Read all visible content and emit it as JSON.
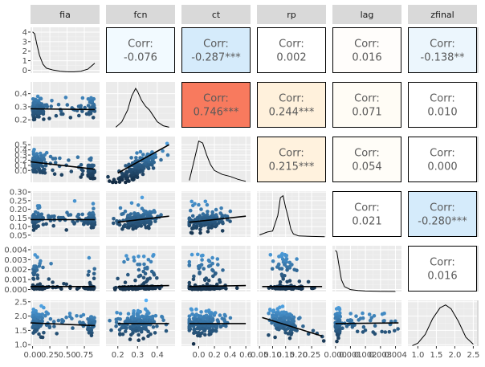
{
  "chart_data": {
    "type": "scatter",
    "variables": [
      "fia",
      "fcn",
      "ct",
      "rp",
      "lag",
      "zfinal"
    ],
    "correlations": [
      {
        "row": "fia",
        "col": "fcn",
        "label": "Corr:",
        "value": "-0.076",
        "fill": "#f2faff"
      },
      {
        "row": "fia",
        "col": "ct",
        "label": "Corr:",
        "value": "-0.287***",
        "fill": "#d5ebfb"
      },
      {
        "row": "fia",
        "col": "rp",
        "label": "Corr:",
        "value": "0.002",
        "fill": "#ffffff"
      },
      {
        "row": "fia",
        "col": "lag",
        "label": "Corr:",
        "value": "0.016",
        "fill": "#fffdfb"
      },
      {
        "row": "fia",
        "col": "zfinal",
        "label": "Corr:",
        "value": "-0.138**",
        "fill": "#ecf6fd"
      },
      {
        "row": "fcn",
        "col": "ct",
        "label": "Corr:",
        "value": "0.746***",
        "fill": "#f87a5e"
      },
      {
        "row": "fcn",
        "col": "rp",
        "label": "Corr:",
        "value": "0.244***",
        "fill": "#fff1dc"
      },
      {
        "row": "fcn",
        "col": "lag",
        "label": "Corr:",
        "value": "0.071",
        "fill": "#fffcf5"
      },
      {
        "row": "fcn",
        "col": "zfinal",
        "label": "Corr:",
        "value": "0.010",
        "fill": "#ffffff"
      },
      {
        "row": "ct",
        "col": "rp",
        "label": "Corr:",
        "value": "0.215***",
        "fill": "#fff2de"
      },
      {
        "row": "ct",
        "col": "lag",
        "label": "Corr:",
        "value": "0.054",
        "fill": "#fffdf8"
      },
      {
        "row": "ct",
        "col": "zfinal",
        "label": "Corr:",
        "value": "0.000",
        "fill": "#ffffff"
      },
      {
        "row": "rp",
        "col": "lag",
        "label": "Corr:",
        "value": "0.021",
        "fill": "#ffffff"
      },
      {
        "row": "rp",
        "col": "zfinal",
        "label": "Corr:",
        "value": "-0.280***",
        "fill": "#d5ebfb"
      },
      {
        "row": "lag",
        "col": "zfinal",
        "label": "Corr:",
        "value": "0.016",
        "fill": "#ffffff"
      }
    ],
    "x_axes": [
      {
        "var": "fia",
        "min": -0.03,
        "max": 0.97,
        "ticks": [
          0,
          0.25,
          0.5,
          0.75
        ],
        "labels": [
          "0.00",
          "0.25",
          "0.50",
          "0.75"
        ]
      },
      {
        "var": "fcn",
        "min": 0.14,
        "max": 0.49,
        "ticks": [
          0.2,
          0.3,
          0.4
        ],
        "labels": [
          "0.2",
          "0.3",
          "0.4"
        ]
      },
      {
        "var": "ct",
        "min": -0.22,
        "max": 0.66,
        "ticks": [
          0,
          0.2,
          0.4,
          0.6
        ],
        "labels": [
          "0.0",
          "0.2",
          "0.4",
          "0.6"
        ]
      },
      {
        "var": "rp",
        "min": 0.04,
        "max": 0.305,
        "ticks": [
          0.05,
          0.1,
          0.15,
          0.2,
          0.25
        ],
        "labels": [
          "0.05",
          "0.10",
          "0.15",
          "0.20",
          "0.25"
        ]
      },
      {
        "var": "lag",
        "min": -0.0002,
        "max": 0.0044,
        "ticks": [
          0,
          0.001,
          0.002,
          0.003,
          0.004
        ],
        "labels": [
          "0.000",
          "0.001",
          "0.002",
          "0.003",
          "0.004"
        ]
      },
      {
        "var": "zfinal",
        "min": 0.73,
        "max": 2.6,
        "ticks": [
          1.0,
          1.5,
          2.0,
          2.5
        ],
        "labels": [
          "1.0",
          "1.5",
          "2.0",
          "2.5"
        ]
      }
    ],
    "y_axes": [
      {
        "var": "fia",
        "min": -0.3,
        "max": 4.5,
        "ticks": [
          0,
          1,
          2,
          3,
          4
        ],
        "labels": [
          "0",
          "1",
          "2",
          "3",
          "4"
        ]
      },
      {
        "var": "fcn",
        "min": 0.14,
        "max": 0.49,
        "ticks": [
          0.2,
          0.3,
          0.4
        ],
        "labels": [
          "0.2",
          "0.3",
          "0.4"
        ]
      },
      {
        "var": "ct",
        "min": -0.23,
        "max": 0.66,
        "ticks": [
          0,
          0.1,
          0.2,
          0.3,
          0.4,
          0.5
        ],
        "labels": [
          "0.0",
          "0.1",
          "0.2",
          "0.3",
          "0.4",
          "0.5"
        ]
      },
      {
        "var": "rp",
        "min": 0.04,
        "max": 0.305,
        "ticks": [
          0.05,
          0.1,
          0.15,
          0.2,
          0.25,
          0.3
        ],
        "labels": [
          "0.05",
          "0.10",
          "0.15",
          "0.20",
          "0.25",
          "0.30"
        ]
      },
      {
        "var": "lag",
        "min": -0.0002,
        "max": 0.0044,
        "ticks": [
          0,
          0.001,
          0.002,
          0.003,
          0.004
        ],
        "labels": [
          "0.000",
          "0.001",
          "0.002",
          "0.003",
          "0.004"
        ]
      },
      {
        "var": "zfinal",
        "min": 0.95,
        "max": 2.55,
        "ticks": [
          1.0,
          1.5,
          2.0,
          2.5
        ],
        "labels": [
          "1.0",
          "1.5",
          "2.0",
          "2.5"
        ]
      }
    ],
    "densities": {
      "fia": {
        "x": [
          0,
          0.03,
          0.06,
          0.1,
          0.15,
          0.2,
          0.3,
          0.4,
          0.5,
          0.6,
          0.7,
          0.8,
          0.85,
          0.9
        ],
        "y": [
          4.2,
          4.0,
          3.0,
          1.8,
          0.9,
          0.5,
          0.3,
          0.2,
          0.15,
          0.15,
          0.2,
          0.4,
          0.7,
          1.0
        ]
      },
      "fcn": {
        "x": [
          0.19,
          0.22,
          0.25,
          0.27,
          0.29,
          0.3,
          0.32,
          0.34,
          0.36,
          0.38,
          0.4,
          0.43,
          0.46
        ],
        "y": [
          0.05,
          0.6,
          1.8,
          3.2,
          4.0,
          3.7,
          2.8,
          2.2,
          1.8,
          1.2,
          0.6,
          0.2,
          0.05
        ]
      },
      "ct": {
        "x": [
          -0.12,
          -0.05,
          0,
          0.05,
          0.1,
          0.15,
          0.2,
          0.3,
          0.4,
          0.5,
          0.6
        ],
        "y": [
          0.2,
          2.5,
          4.2,
          4.0,
          2.8,
          1.8,
          1.2,
          0.8,
          0.6,
          0.3,
          0.1
        ]
      },
      "rp": {
        "x": [
          0.05,
          0.08,
          0.1,
          0.12,
          0.13,
          0.14,
          0.15,
          0.16,
          0.17,
          0.18,
          0.2,
          0.25,
          0.3
        ],
        "y": [
          0.2,
          0.5,
          0.6,
          2.2,
          4.0,
          4.2,
          3.0,
          2.0,
          0.8,
          0.3,
          0.1,
          0.05,
          0.02
        ]
      },
      "lag": {
        "x": [
          0,
          0.0001,
          0.0002,
          0.0004,
          0.0006,
          0.001,
          0.0015,
          0.002,
          0.003,
          0.004
        ],
        "y": [
          4.2,
          4.0,
          3.0,
          1.2,
          0.5,
          0.2,
          0.1,
          0.05,
          0.02,
          0.01
        ]
      },
      "zfinal": {
        "x": [
          0.85,
          1.0,
          1.2,
          1.4,
          1.6,
          1.75,
          1.9,
          2.1,
          2.3,
          2.5
        ],
        "y": [
          0.05,
          0.3,
          1.2,
          2.8,
          3.9,
          4.2,
          3.8,
          2.5,
          0.9,
          0.2
        ]
      }
    },
    "fits": [
      {
        "row": "fcn",
        "col": "fia",
        "x": [
          -0.03,
          0.9
        ],
        "y": [
          0.284,
          0.279
        ]
      },
      {
        "row": "ct",
        "col": "fia",
        "x": [
          -0.03,
          0.9
        ],
        "y": [
          0.17,
          0.025
        ]
      },
      {
        "row": "ct",
        "col": "fcn",
        "x": [
          0.2,
          0.46
        ],
        "y": [
          -0.05,
          0.5
        ]
      },
      {
        "row": "rp",
        "col": "fia",
        "x": [
          -0.03,
          0.9
        ],
        "y": [
          0.14,
          0.14
        ]
      },
      {
        "row": "rp",
        "col": "fcn",
        "x": [
          0.2,
          0.46
        ],
        "y": [
          0.125,
          0.16
        ]
      },
      {
        "row": "rp",
        "col": "ct",
        "x": [
          -0.12,
          0.6
        ],
        "y": [
          0.125,
          0.16
        ]
      },
      {
        "row": "lag",
        "col": "fia",
        "x": [
          -0.03,
          0.9
        ],
        "y": [
          0.0003,
          0.0003
        ]
      },
      {
        "row": "lag",
        "col": "fcn",
        "x": [
          0.2,
          0.46
        ],
        "y": [
          0.0003,
          0.0004
        ]
      },
      {
        "row": "lag",
        "col": "ct",
        "x": [
          -0.12,
          0.6
        ],
        "y": [
          0.0003,
          0.0004
        ]
      },
      {
        "row": "lag",
        "col": "rp",
        "x": [
          0.06,
          0.29
        ],
        "y": [
          0.0003,
          0.0003
        ]
      },
      {
        "row": "zfinal",
        "col": "fia",
        "x": [
          -0.03,
          0.9
        ],
        "y": [
          1.76,
          1.67
        ]
      },
      {
        "row": "zfinal",
        "col": "fcn",
        "x": [
          0.2,
          0.46
        ],
        "y": [
          1.74,
          1.74
        ]
      },
      {
        "row": "zfinal",
        "col": "ct",
        "x": [
          -0.12,
          0.6
        ],
        "y": [
          1.74,
          1.74
        ]
      },
      {
        "row": "zfinal",
        "col": "rp",
        "x": [
          0.06,
          0.29
        ],
        "y": [
          1.95,
          1.3
        ]
      },
      {
        "row": "zfinal",
        "col": "lag",
        "x": [
          0,
          0.0042
        ],
        "y": [
          1.74,
          1.76
        ]
      }
    ],
    "point_color_low": "#132b43",
    "point_color_high": "#56b1f7",
    "fit_color": "#000000",
    "panel_background": "#ebebeb",
    "grid": true
  }
}
